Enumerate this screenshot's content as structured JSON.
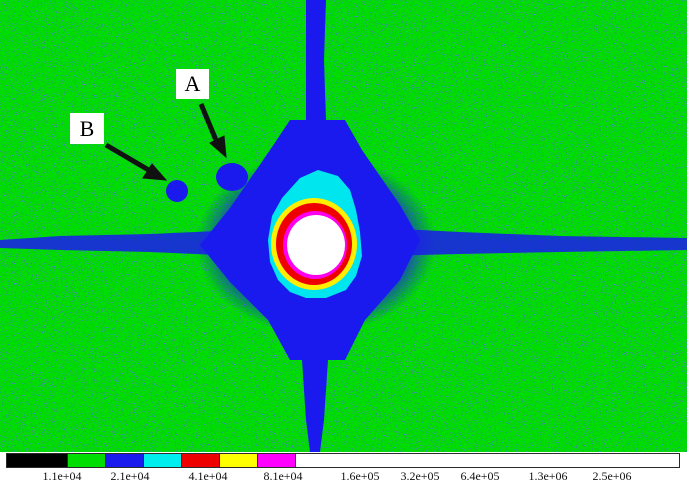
{
  "image": {
    "description_colors": {
      "background": "#00dd00",
      "noise": "#1a1aee",
      "halo": "#00e6ee",
      "ring_red": "#ee0000",
      "ring_yellow": "#ffee00",
      "ring_magenta": "#ff00ee",
      "core": "#ffffff",
      "arrow": "#111111"
    }
  },
  "callouts": {
    "a": "A",
    "b": "B"
  },
  "colorbar": {
    "colors": [
      "#000000",
      "#00dd00",
      "#1a1aee",
      "#00eeee",
      "#ee0000",
      "#ffff00",
      "#ff00ff",
      "#ffffff"
    ],
    "ticks": [
      "1.1e+04",
      "2.1e+04",
      "4.1e+04",
      "8.1e+04",
      "1.6e+05",
      "3.2e+05",
      "6.4e+05",
      "1.3e+06",
      "2.5e+06"
    ]
  }
}
